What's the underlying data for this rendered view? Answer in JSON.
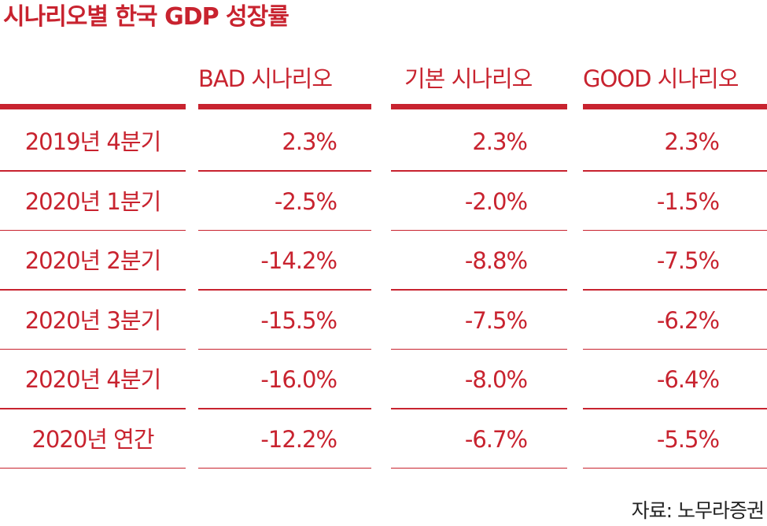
{
  "title": "시나리오별 한국 GDP 성장률",
  "source": "자료: 노무라증권",
  "colors": {
    "accent": "#c8232f",
    "source_text": "#222222",
    "background": "#ffffff"
  },
  "chart_data": {
    "type": "table",
    "title": "시나리오별 한국 GDP 성장률",
    "columns": [
      "BAD 시나리오",
      "기본 시나리오",
      "GOOD 시나리오"
    ],
    "rows": [
      {
        "label": "2019년 4분기",
        "values": [
          "2.3%",
          "2.3%",
          "2.3%"
        ]
      },
      {
        "label": "2020년 1분기",
        "values": [
          "-2.5%",
          "-2.0%",
          "-1.5%"
        ]
      },
      {
        "label": "2020년 2분기",
        "values": [
          "-14.2%",
          "-8.8%",
          "-7.5%"
        ]
      },
      {
        "label": "2020년 3분기",
        "values": [
          "-15.5%",
          "-7.5%",
          "-6.2%"
        ]
      },
      {
        "label": "2020년 4분기",
        "values": [
          "-16.0%",
          "-8.0%",
          "-6.4%"
        ]
      },
      {
        "label": "2020년 연간",
        "values": [
          "-12.2%",
          "-6.7%",
          "-5.5%"
        ]
      }
    ]
  }
}
